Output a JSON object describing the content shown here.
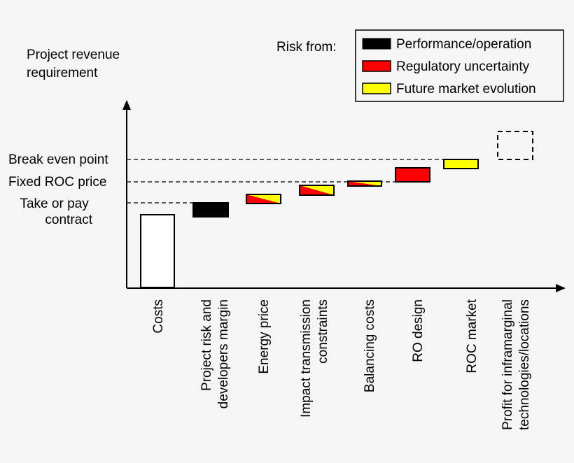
{
  "y_axis_label": [
    "Project revenue",
    "requirement"
  ],
  "levels": {
    "break_even": "Break even point",
    "fixed_roc": "Fixed ROC price",
    "take_or_pay": [
      "Take or pay",
      "contract"
    ]
  },
  "legend": {
    "title": "Risk from:",
    "items": [
      {
        "label": "Performance/operation",
        "color": "#000000"
      },
      {
        "label": "Regulatory uncertainty",
        "color": "#ff0000"
      },
      {
        "label": "Future market evolution",
        "color": "#ffff00"
      }
    ]
  },
  "categories": [
    {
      "lines": [
        "Costs"
      ],
      "fill": "white"
    },
    {
      "lines": [
        "Project risk and",
        "developers margin"
      ],
      "fill": "performance"
    },
    {
      "lines": [
        "Energy price"
      ],
      "fill": "regulatory+market"
    },
    {
      "lines": [
        "Impact transmission",
        "constraints"
      ],
      "fill": "regulatory+market"
    },
    {
      "lines": [
        "Balancing costs"
      ],
      "fill": "regulatory+market"
    },
    {
      "lines": [
        "RO design"
      ],
      "fill": "regulatory"
    },
    {
      "lines": [
        "ROC market"
      ],
      "fill": "market"
    },
    {
      "lines": [
        "Profit for inframarginal",
        "technologies/locations"
      ],
      "fill": "dashed"
    }
  ]
}
